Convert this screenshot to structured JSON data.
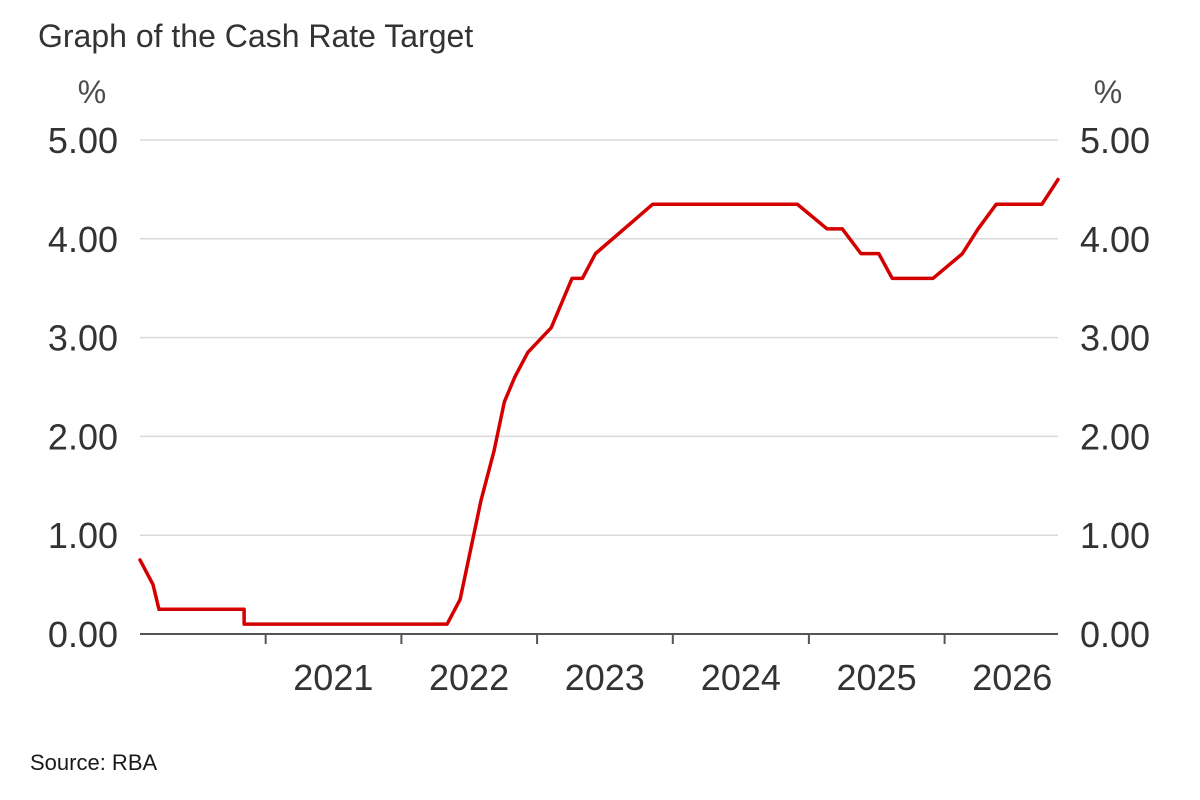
{
  "chart_data": {
    "type": "line",
    "title": "Graph of the Cash Rate Target",
    "source": "Source: RBA",
    "y_unit_left": "%",
    "y_unit_right": "%",
    "ylim": [
      0,
      5
    ],
    "y_ticks": [
      "0.00",
      "1.00",
      "2.00",
      "3.00",
      "4.00",
      "5.00"
    ],
    "x_range": [
      "2020-01-29",
      "2026-11-02"
    ],
    "x_ticks": [
      "2021",
      "2022",
      "2023",
      "2024",
      "2025",
      "2026"
    ],
    "grid": "horizontal",
    "axes": "dual y-axis (left and right)",
    "colors": {
      "line": "#d40000",
      "grid": "#d9d9d9",
      "axis": "#555555",
      "text": "#333333"
    },
    "series": [
      {
        "x": [
          "2020-01-29",
          "2020-03-04",
          "2020-03-20",
          "2020-11-04",
          "2020-11-04",
          "2022-05-04",
          "2022-06-08",
          "2022-07-06",
          "2022-08-03",
          "2022-09-07",
          "2022-10-05",
          "2022-11-02",
          "2022-12-07",
          "2023-02-08",
          "2023-03-08",
          "2023-04-05",
          "2023-05-03",
          "2023-06-07",
          "2023-11-08",
          "2024-12-01",
          "2025-02-19",
          "2025-04-01",
          "2025-05-21",
          "2025-07-08",
          "2025-08-13",
          "2025-12-01",
          "2026-02-18",
          "2026-04-01",
          "2026-05-20",
          "2026-09-20",
          "2026-11-02"
        ],
        "y": [
          0.75,
          0.5,
          0.25,
          0.25,
          0.1,
          0.1,
          0.35,
          0.85,
          1.35,
          1.85,
          2.35,
          2.6,
          2.85,
          3.1,
          3.35,
          3.6,
          3.6,
          3.85,
          4.35,
          4.35,
          4.1,
          4.1,
          3.85,
          3.85,
          3.6,
          3.6,
          3.85,
          4.1,
          4.35,
          4.35,
          4.6
        ]
      }
    ]
  }
}
